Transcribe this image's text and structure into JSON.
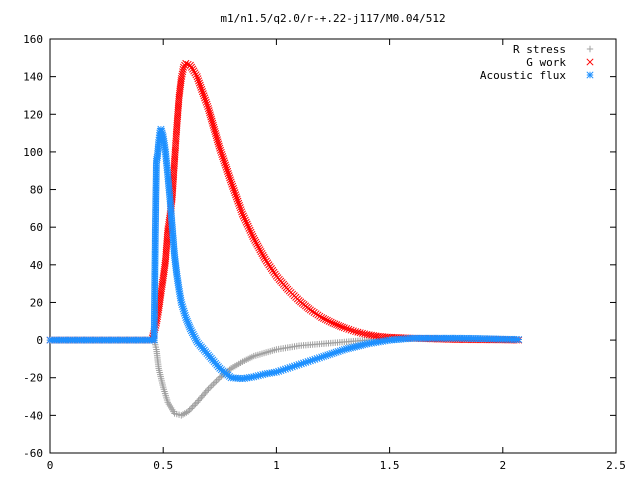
{
  "chart_data": {
    "type": "scatter",
    "title": "m1/n1.5/q2.0/r-+.22-j117/M0.04/512",
    "xlabel": "",
    "ylabel": "",
    "xlim": [
      0,
      2.5
    ],
    "ylim": [
      -60,
      160
    ],
    "x_ticks": [
      "0",
      "0.5",
      "1",
      "1.5",
      "2",
      "2.5"
    ],
    "y_ticks": [
      "-60",
      "-40",
      "-20",
      "0",
      "20",
      "40",
      "60",
      "80",
      "100",
      "120",
      "140",
      "160"
    ],
    "grid": false,
    "legend_position": "top-right",
    "series": [
      {
        "name": "R stress",
        "color": "#a0a0a0",
        "marker": "plus",
        "points": [
          [
            0,
            0
          ],
          [
            0.1,
            0
          ],
          [
            0.2,
            0
          ],
          [
            0.3,
            0
          ],
          [
            0.4,
            0
          ],
          [
            0.46,
            0
          ],
          [
            0.47,
            -5
          ],
          [
            0.48,
            -15
          ],
          [
            0.5,
            -25
          ],
          [
            0.52,
            -33
          ],
          [
            0.55,
            -39
          ],
          [
            0.58,
            -40
          ],
          [
            0.61,
            -38
          ],
          [
            0.65,
            -33
          ],
          [
            0.7,
            -26
          ],
          [
            0.75,
            -20
          ],
          [
            0.8,
            -15
          ],
          [
            0.85,
            -11.5
          ],
          [
            0.9,
            -8.5
          ],
          [
            1.0,
            -5
          ],
          [
            1.1,
            -3
          ],
          [
            1.2,
            -2
          ],
          [
            1.3,
            -1
          ],
          [
            1.4,
            0
          ],
          [
            1.5,
            0.5
          ],
          [
            1.6,
            0.8
          ],
          [
            1.7,
            0.8
          ],
          [
            1.8,
            0.8
          ],
          [
            1.9,
            0.6
          ],
          [
            2.0,
            0.4
          ],
          [
            2.07,
            0.3
          ]
        ]
      },
      {
        "name": "G work",
        "color": "#ff0000",
        "marker": "cross",
        "points": [
          [
            0,
            0
          ],
          [
            0.1,
            0
          ],
          [
            0.2,
            0
          ],
          [
            0.3,
            0
          ],
          [
            0.4,
            0
          ],
          [
            0.45,
            0
          ],
          [
            0.47,
            9
          ],
          [
            0.48,
            16
          ],
          [
            0.49,
            25
          ],
          [
            0.5,
            33
          ],
          [
            0.51,
            42
          ],
          [
            0.52,
            58
          ],
          [
            0.53,
            66
          ],
          [
            0.54,
            76
          ],
          [
            0.55,
            95
          ],
          [
            0.56,
            113
          ],
          [
            0.57,
            129
          ],
          [
            0.58,
            139
          ],
          [
            0.59,
            145
          ],
          [
            0.6,
            147
          ],
          [
            0.62,
            146
          ],
          [
            0.65,
            140
          ],
          [
            0.7,
            123
          ],
          [
            0.75,
            102
          ],
          [
            0.8,
            84
          ],
          [
            0.85,
            67
          ],
          [
            0.9,
            54
          ],
          [
            0.95,
            43
          ],
          [
            1.0,
            34
          ],
          [
            1.05,
            27
          ],
          [
            1.1,
            21
          ],
          [
            1.15,
            16
          ],
          [
            1.2,
            12
          ],
          [
            1.25,
            9
          ],
          [
            1.3,
            6.5
          ],
          [
            1.35,
            4.5
          ],
          [
            1.4,
            3
          ],
          [
            1.45,
            2
          ],
          [
            1.5,
            1.5
          ],
          [
            1.6,
            1
          ],
          [
            1.7,
            0.6
          ],
          [
            1.8,
            0.3
          ],
          [
            1.9,
            0.2
          ],
          [
            2.0,
            0.1
          ],
          [
            2.07,
            0
          ]
        ]
      },
      {
        "name": "Acoustic flux",
        "color": "#1e90ff",
        "marker": "star",
        "points": [
          [
            0,
            0
          ],
          [
            0.1,
            0
          ],
          [
            0.2,
            0
          ],
          [
            0.3,
            0
          ],
          [
            0.4,
            0
          ],
          [
            0.46,
            0
          ],
          [
            0.465,
            55
          ],
          [
            0.47,
            95
          ],
          [
            0.475,
            98
          ],
          [
            0.48,
            105
          ],
          [
            0.485,
            110
          ],
          [
            0.49,
            112
          ],
          [
            0.5,
            108
          ],
          [
            0.51,
            100
          ],
          [
            0.52,
            88
          ],
          [
            0.53,
            75
          ],
          [
            0.54,
            60
          ],
          [
            0.55,
            45
          ],
          [
            0.56,
            35
          ],
          [
            0.57,
            27
          ],
          [
            0.58,
            20
          ],
          [
            0.6,
            12
          ],
          [
            0.62,
            6
          ],
          [
            0.65,
            -1
          ],
          [
            0.7,
            -8
          ],
          [
            0.75,
            -15
          ],
          [
            0.8,
            -20
          ],
          [
            0.85,
            -20.5
          ],
          [
            0.9,
            -19.5
          ],
          [
            0.95,
            -18
          ],
          [
            1.0,
            -17
          ],
          [
            1.05,
            -15
          ],
          [
            1.1,
            -13
          ],
          [
            1.15,
            -11
          ],
          [
            1.2,
            -9
          ],
          [
            1.3,
            -5
          ],
          [
            1.4,
            -2
          ],
          [
            1.5,
            0
          ],
          [
            1.6,
            1
          ],
          [
            1.7,
            1
          ],
          [
            1.8,
            1
          ],
          [
            1.9,
            0.8
          ],
          [
            2.0,
            0.5
          ],
          [
            2.07,
            0.3
          ]
        ]
      }
    ]
  }
}
